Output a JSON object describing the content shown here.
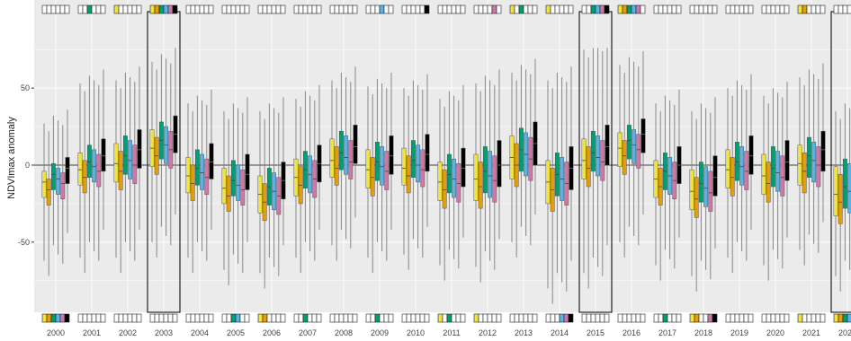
{
  "chart_data": {
    "type": "boxplot",
    "title": "",
    "ylabel": "NDVImax anomaly",
    "xlabel": "",
    "ylim": [
      -92,
      92
    ],
    "yticks": [
      50,
      0,
      -50
    ],
    "grid": true,
    "zero_line": true,
    "legend": "none",
    "categories": [
      "2000",
      "2001",
      "2002",
      "2003",
      "2004",
      "2005",
      "2006",
      "2007",
      "2008",
      "2009",
      "2010",
      "2011",
      "2012",
      "2013",
      "2014",
      "2015",
      "2016",
      "2017",
      "2018",
      "2019",
      "2020",
      "2021",
      "2022"
    ],
    "highlighted_years": [
      "2003",
      "2015",
      "2022"
    ],
    "series_colors": [
      "#f0e442",
      "#e69f00",
      "#009e73",
      "#56b4e9",
      "#cc79a7",
      "#000000"
    ],
    "median_offsets": [
      -5,
      -10,
      0,
      -3,
      -6,
      4
    ],
    "boxes": [
      {
        "median": -6,
        "q1": -16,
        "q3": 1,
        "lo": -52,
        "hi": 32
      },
      {
        "median": 2,
        "q1": -8,
        "q3": 13,
        "lo": -50,
        "hi": 58
      },
      {
        "median": 6,
        "q1": -6,
        "q3": 19,
        "lo": -50,
        "hi": 60
      },
      {
        "median": 16,
        "q1": 4,
        "q3": 28,
        "lo": -40,
        "hi": 72
      },
      {
        "median": -2,
        "q1": -13,
        "q3": 10,
        "lo": -50,
        "hi": 45
      },
      {
        "median": -10,
        "q1": -20,
        "q3": 3,
        "lo": -58,
        "hi": 40
      },
      {
        "median": -14,
        "q1": -26,
        "q3": -2,
        "lo": -60,
        "hi": 40
      },
      {
        "median": -3,
        "q1": -15,
        "q3": 9,
        "lo": -50,
        "hi": 48
      },
      {
        "median": 8,
        "q1": -3,
        "q3": 22,
        "lo": -42,
        "hi": 60
      },
      {
        "median": 2,
        "q1": -10,
        "q3": 15,
        "lo": -50,
        "hi": 56
      },
      {
        "median": 3,
        "q1": -8,
        "q3": 16,
        "lo": -48,
        "hi": 55
      },
      {
        "median": -6,
        "q1": -18,
        "q3": 7,
        "lo": -55,
        "hi": 48
      },
      {
        "median": -4,
        "q1": -18,
        "q3": 12,
        "lo": -56,
        "hi": 58
      },
      {
        "median": 10,
        "q1": -4,
        "q3": 24,
        "lo": -40,
        "hi": 65
      },
      {
        "median": -6,
        "q1": -20,
        "q3": 8,
        "lo": -70,
        "hi": 60
      },
      {
        "median": 8,
        "q1": -4,
        "q3": 22,
        "lo": -60,
        "hi": 80
      },
      {
        "median": 16,
        "q1": 4,
        "q3": 26,
        "lo": -40,
        "hi": 70
      },
      {
        "median": -4,
        "q1": -16,
        "q3": 8,
        "lo": -55,
        "hi": 45
      },
      {
        "median": -12,
        "q1": -24,
        "q3": 2,
        "lo": -62,
        "hi": 40
      },
      {
        "median": 2,
        "q1": -10,
        "q3": 15,
        "lo": -50,
        "hi": 55
      },
      {
        "median": -2,
        "q1": -14,
        "q3": 12,
        "lo": -55,
        "hi": 50
      },
      {
        "median": 6,
        "q1": -8,
        "q3": 18,
        "lo": -45,
        "hi": 62
      },
      {
        "median": -14,
        "q1": -28,
        "q3": 4,
        "lo": -62,
        "hi": 40
      }
    ],
    "top_strips": [
      [
        0,
        0,
        0,
        0,
        0,
        0
      ],
      [
        0,
        0,
        1,
        0,
        0,
        0
      ],
      [
        1,
        0,
        0,
        0,
        0,
        0
      ],
      [
        1,
        1,
        1,
        1,
        1,
        1
      ],
      [
        0,
        0,
        0,
        0,
        0,
        0
      ],
      [
        0,
        0,
        0,
        0,
        0,
        0
      ],
      [
        0,
        0,
        0,
        0,
        0,
        0
      ],
      [
        0,
        0,
        0,
        0,
        0,
        0
      ],
      [
        0,
        0,
        0,
        0,
        0,
        0
      ],
      [
        0,
        0,
        0,
        1,
        0,
        0
      ],
      [
        0,
        0,
        0,
        0,
        0,
        1
      ],
      [
        0,
        0,
        0,
        0,
        0,
        0
      ],
      [
        0,
        0,
        0,
        0,
        1,
        0
      ],
      [
        1,
        0,
        1,
        0,
        0,
        0
      ],
      [
        1,
        0,
        0,
        0,
        0,
        0
      ],
      [
        0,
        0,
        1,
        1,
        1,
        1
      ],
      [
        1,
        1,
        1,
        1,
        1,
        0
      ],
      [
        0,
        0,
        0,
        0,
        0,
        0
      ],
      [
        0,
        0,
        0,
        0,
        0,
        0
      ],
      [
        0,
        0,
        0,
        0,
        0,
        0
      ],
      [
        0,
        0,
        0,
        0,
        0,
        0
      ],
      [
        1,
        1,
        0,
        0,
        0,
        0
      ],
      [
        0,
        0,
        0,
        0,
        0,
        0
      ]
    ],
    "bottom_strips": [
      [
        1,
        1,
        1,
        1,
        1,
        1
      ],
      [
        0,
        0,
        0,
        0,
        0,
        0
      ],
      [
        0,
        0,
        0,
        0,
        0,
        0
      ],
      [
        0,
        0,
        0,
        0,
        0,
        0
      ],
      [
        0,
        0,
        0,
        0,
        0,
        0
      ],
      [
        0,
        0,
        1,
        1,
        0,
        0
      ],
      [
        1,
        1,
        0,
        0,
        0,
        0
      ],
      [
        0,
        0,
        1,
        0,
        0,
        0
      ],
      [
        0,
        0,
        0,
        0,
        0,
        0
      ],
      [
        0,
        0,
        1,
        0,
        0,
        0
      ],
      [
        0,
        0,
        0,
        0,
        0,
        0
      ],
      [
        1,
        0,
        1,
        0,
        0,
        0
      ],
      [
        1,
        0,
        0,
        0,
        0,
        0
      ],
      [
        0,
        0,
        0,
        0,
        0,
        0
      ],
      [
        0,
        0,
        0,
        1,
        1,
        1
      ],
      [
        0,
        0,
        0,
        0,
        0,
        0
      ],
      [
        0,
        0,
        0,
        0,
        0,
        0
      ],
      [
        0,
        0,
        1,
        0,
        0,
        0
      ],
      [
        1,
        1,
        0,
        0,
        1,
        1
      ],
      [
        0,
        0,
        0,
        0,
        0,
        0
      ],
      [
        0,
        0,
        0,
        0,
        0,
        0
      ],
      [
        1,
        0,
        0,
        0,
        0,
        0
      ],
      [
        1,
        1,
        1,
        1,
        1,
        1
      ]
    ]
  }
}
